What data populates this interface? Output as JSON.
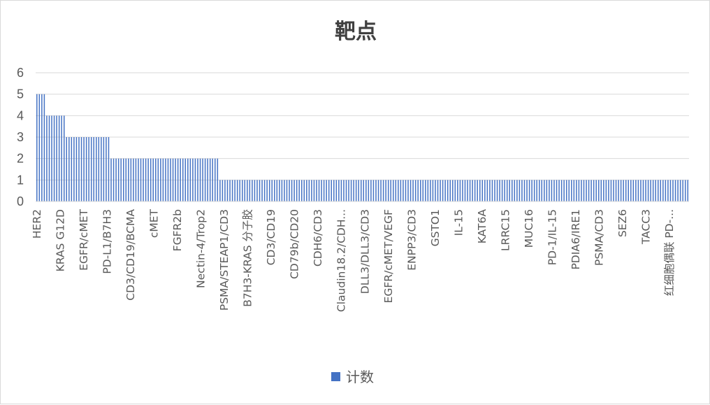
{
  "chart_data": {
    "type": "bar",
    "title": "靶点",
    "xlabel": "",
    "ylabel": "",
    "ylim": [
      0,
      6
    ],
    "yticks": [
      0,
      1,
      2,
      3,
      4,
      5,
      6
    ],
    "grid": true,
    "legend_position": "bottom",
    "bar_color": "#4472C4",
    "series": [
      {
        "name": "计数"
      }
    ],
    "bar_groups": [
      {
        "value": 5,
        "count": 4
      },
      {
        "value": 4,
        "count": 8
      },
      {
        "value": 3,
        "count": 18
      },
      {
        "value": 2,
        "count": 44
      },
      {
        "value": 1,
        "count": 190
      }
    ],
    "visible_categories": [
      "HER2",
      "KRAS G12D",
      "EGFR/cMET",
      "PD-L1/B7H3",
      "CD3/CD19/BCMA",
      "cMET",
      "FGFR2b",
      "Nectin-4/Trop2",
      "PSMA/STEAP1/CD3",
      "B7H3-KRAS 分子胶",
      "CD3/CD19",
      "CD79b/CD20",
      "CDH6/CD3",
      "Claudin18.2/CDH...",
      "DLL3/DLL3/CD3",
      "EGFR/cMET/VEGF",
      "ENPP3/CD3",
      "GSTO1",
      "IL-15",
      "KAT6A",
      "LRRC15",
      "MUC16",
      "PD-1/IL-15",
      "PDIA6/IRE1",
      "PSMA/CD3",
      "SEZ6",
      "TACC3",
      "红细胞偶联 PD-..."
    ]
  }
}
